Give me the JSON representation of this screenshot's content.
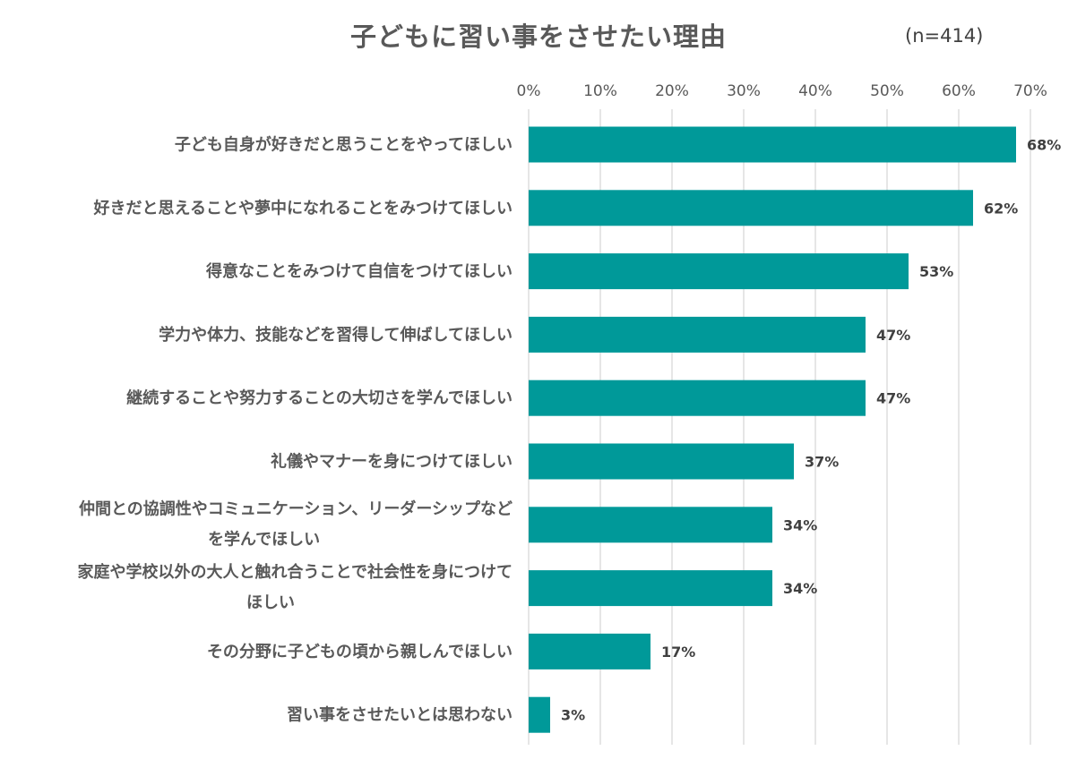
{
  "chart_data": {
    "type": "bar",
    "orientation": "horizontal",
    "title": "子どもに習い事をさせたい理由",
    "sample_size": "(n=414)",
    "categories": [
      [
        "子ども自身が好きだと思うことをやってほしい"
      ],
      [
        "好きだと思えることや夢中になれることをみつけてほしい"
      ],
      [
        "得意なことをみつけて自信をつけてほしい"
      ],
      [
        "学力や体力、技能などを習得して伸ばしてほしい"
      ],
      [
        "継続することや努力することの大切さを学んでほしい"
      ],
      [
        "礼儀やマナーを身につけてほしい"
      ],
      [
        "仲間との協調性やコミュニケーション、リーダーシップなど",
        "を学んでほしい"
      ],
      [
        "家庭や学校以外の大人と触れ合うことで社会性を身につけて",
        "ほしい"
      ],
      [
        "その分野に子どもの頃から親しんでほしい"
      ],
      [
        "習い事をさせたいとは思わない"
      ]
    ],
    "values": [
      68,
      62,
      53,
      47,
      47,
      37,
      34,
      34,
      17,
      3
    ],
    "data_labels": [
      "68%",
      "62%",
      "53%",
      "47%",
      "47%",
      "37%",
      "34%",
      "34%",
      "17%",
      "3%"
    ],
    "x_ticks": [
      "0%",
      "10%",
      "20%",
      "30%",
      "40%",
      "50%",
      "60%",
      "70%"
    ],
    "xlim": [
      0,
      70
    ],
    "axis_position": "top",
    "grid": true,
    "bar_color": "#009999",
    "grid_color": "#d9d9d9"
  }
}
